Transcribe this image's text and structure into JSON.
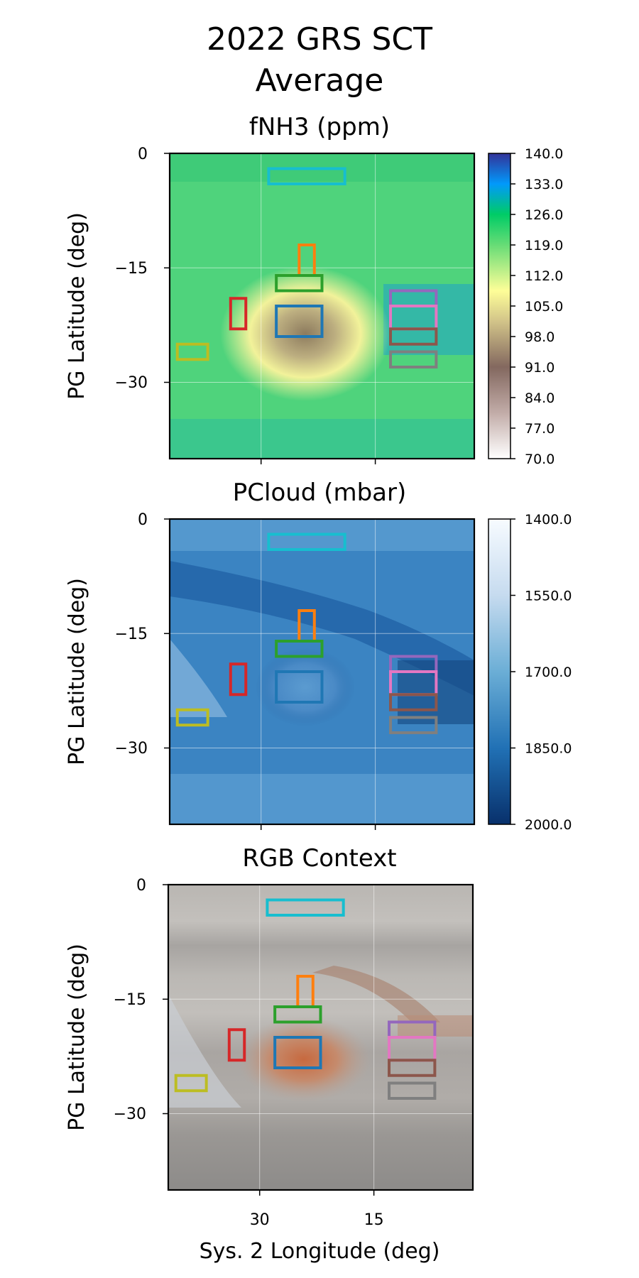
{
  "figure": {
    "title_line1": "2022 GRS SCT",
    "title_line2": "Average",
    "xlabel": "Sys. 2 Longitude (deg)"
  },
  "chart_data": [
    {
      "type": "heatmap",
      "title": "fNH3 (ppm)",
      "ylabel": "PG Latitude (deg)",
      "xlim": [
        42,
        2
      ],
      "ylim": [
        -40,
        0
      ],
      "xticks": [
        30,
        15
      ],
      "yticks": [
        0,
        -15,
        -30
      ],
      "ytick_labels": [
        "0",
        "−15",
        "−30"
      ],
      "colorbar": {
        "min": 70,
        "max": 140,
        "colormap": "terrain",
        "ticks": [
          "140.0",
          "133.0",
          "126.0",
          "119.0",
          "112.0",
          "105.0",
          "98.0",
          "91.0",
          "84.0",
          "77.0",
          "70.0"
        ]
      }
    },
    {
      "type": "heatmap",
      "title": "PCloud (mbar)",
      "ylabel": "PG Latitude (deg)",
      "xlim": [
        42,
        2
      ],
      "ylim": [
        -40,
        0
      ],
      "xticks": [
        30,
        15
      ],
      "yticks": [
        0,
        -15,
        -30
      ],
      "ytick_labels": [
        "0",
        "−15",
        "−30"
      ],
      "colorbar": {
        "min": 1400,
        "max": 2000,
        "colormap": "Blues (reversed axis)",
        "ticks": [
          "1400.0",
          "1550.0",
          "1700.0",
          "1850.0",
          "2000.0"
        ]
      }
    },
    {
      "type": "heatmap",
      "title": "RGB Context",
      "ylabel": "PG Latitude (deg)",
      "xlim": [
        42,
        2
      ],
      "ylim": [
        -40,
        0
      ],
      "xticks": [
        30,
        15
      ],
      "xtick_labels": [
        "30",
        "15"
      ],
      "yticks": [
        0,
        -15,
        -30
      ],
      "ytick_labels": [
        "0",
        "−15",
        "−30"
      ]
    }
  ],
  "regions": [
    {
      "name": "cyan",
      "color": "#17becf",
      "lon": [
        29,
        19
      ],
      "lat": [
        -2.0,
        -4.0
      ]
    },
    {
      "name": "orange",
      "color": "#ff7f0e",
      "lon": [
        25,
        23
      ],
      "lat": [
        -12.0,
        -16.0
      ]
    },
    {
      "name": "green",
      "color": "#2ca02c",
      "lon": [
        28,
        22
      ],
      "lat": [
        -16.0,
        -18.0
      ]
    },
    {
      "name": "blue",
      "color": "#1f77b4",
      "lon": [
        28,
        22
      ],
      "lat": [
        -20.0,
        -24.0
      ]
    },
    {
      "name": "red",
      "color": "#d62728",
      "lon": [
        34,
        32
      ],
      "lat": [
        -19.0,
        -23.0
      ]
    },
    {
      "name": "olive",
      "color": "#bcbd22",
      "lon": [
        41,
        37
      ],
      "lat": [
        -25.0,
        -27.0
      ]
    },
    {
      "name": "purple",
      "color": "#9467bd",
      "lon": [
        13,
        7
      ],
      "lat": [
        -18.0,
        -20.0
      ]
    },
    {
      "name": "pink",
      "color": "#e377c2",
      "lon": [
        13,
        7
      ],
      "lat": [
        -20.0,
        -23.0
      ]
    },
    {
      "name": "brown",
      "color": "#8c564b",
      "lon": [
        13,
        7
      ],
      "lat": [
        -23.0,
        -25.0
      ]
    },
    {
      "name": "gray",
      "color": "#7f7f7f",
      "lon": [
        13,
        7
      ],
      "lat": [
        -26.0,
        -28.0
      ]
    }
  ]
}
